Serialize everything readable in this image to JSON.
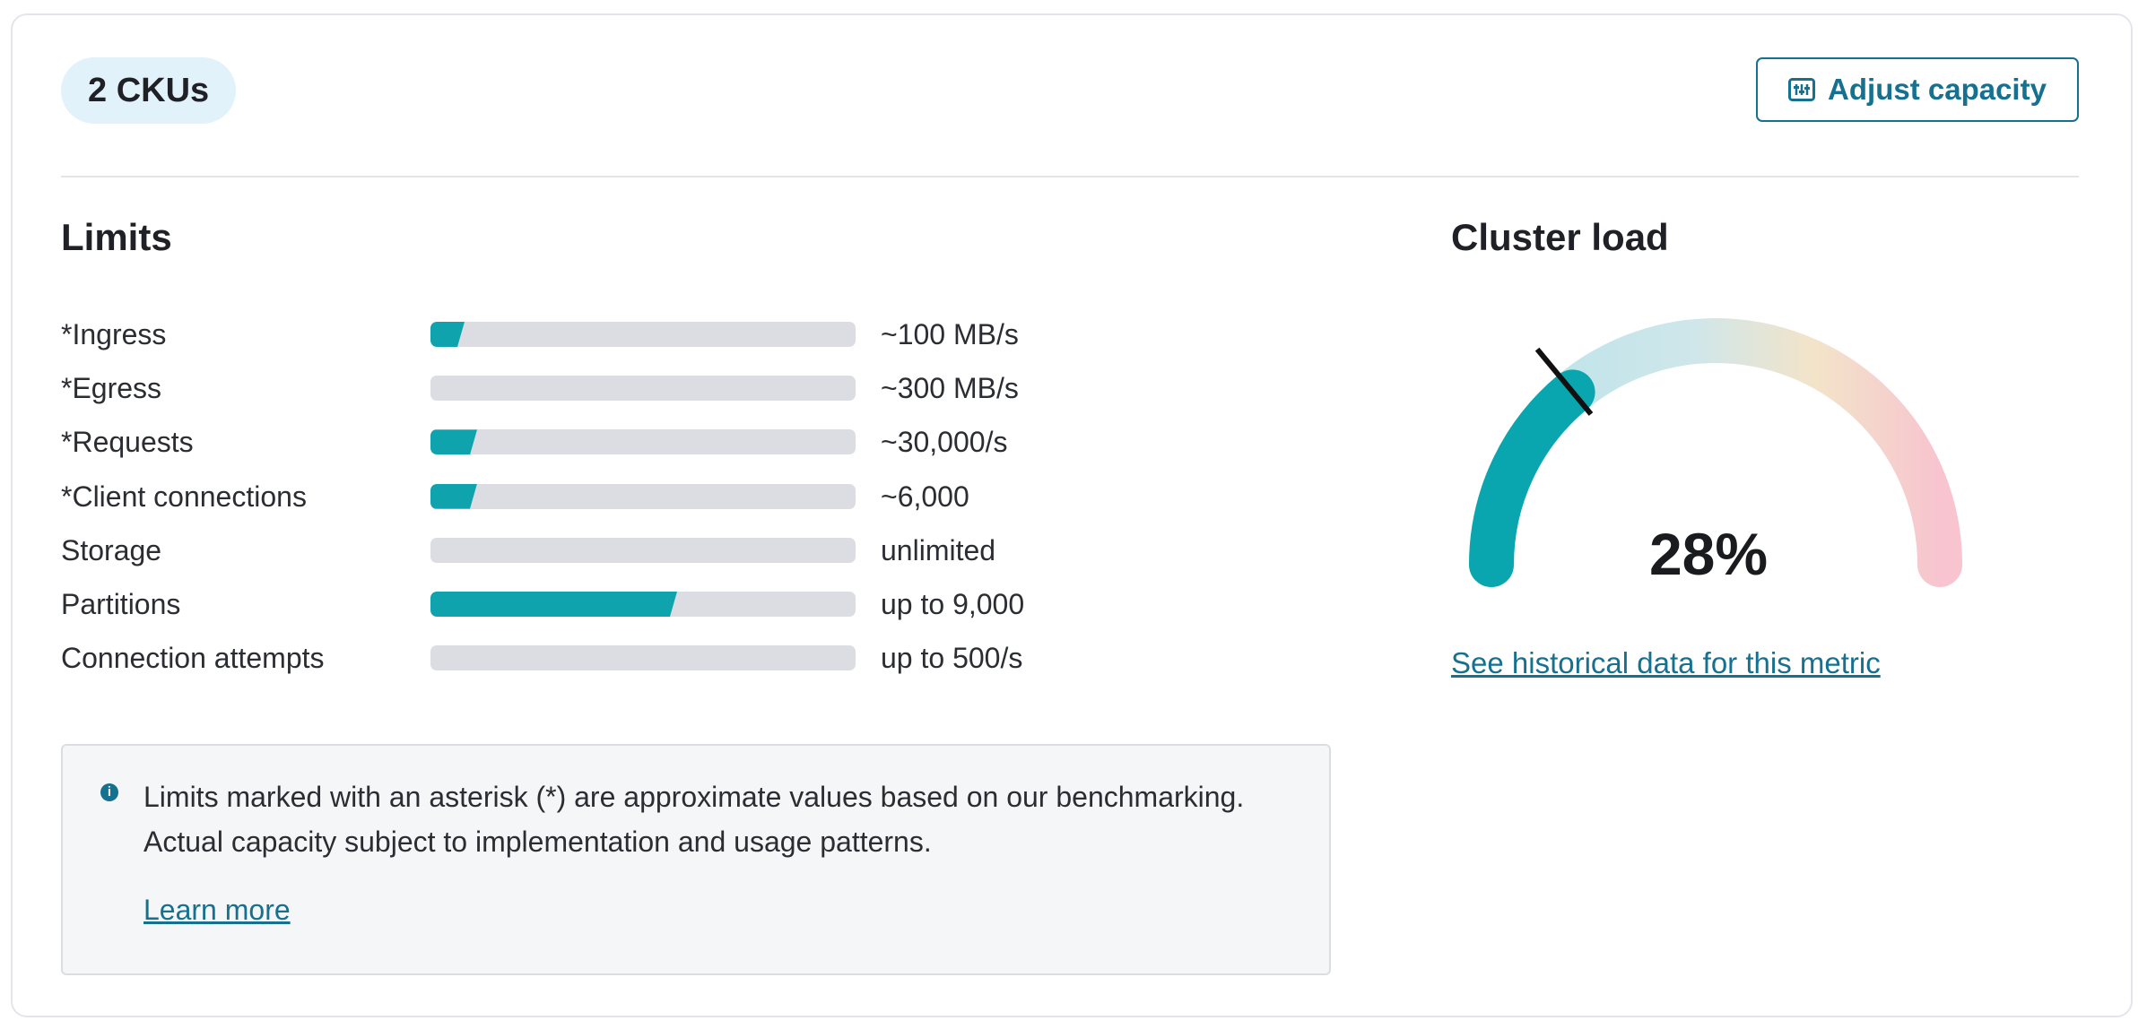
{
  "header": {
    "cku_badge": "2 CKUs",
    "adjust_capacity_label": "Adjust capacity",
    "adjust_capacity_icon": "sliders-icon"
  },
  "limits": {
    "title": "Limits",
    "rows": [
      {
        "label": "*Ingress",
        "value": "~100 MB/s",
        "usage_fraction": 0.08
      },
      {
        "label": "*Egress",
        "value": "~300 MB/s",
        "usage_fraction": 0.0
      },
      {
        "label": "*Requests",
        "value": "~30,000/s",
        "usage_fraction": 0.11
      },
      {
        "label": "*Client connections",
        "value": "~6,000",
        "usage_fraction": 0.11
      },
      {
        "label": "Storage",
        "value": "unlimited",
        "usage_fraction": 0.0
      },
      {
        "label": "Partitions",
        "value": "up to 9,000",
        "usage_fraction": 0.58
      },
      {
        "label": "Connection attempts",
        "value": "up to 500/s",
        "usage_fraction": 0.0
      }
    ],
    "info": {
      "icon": "info-icon",
      "text": "Limits marked with an asterisk (*) are approximate values based on our benchmarking. Actual capacity subject to implementation and usage patterns.",
      "learn_more": "Learn more"
    }
  },
  "cluster_load": {
    "title": "Cluster load",
    "value_text": "28%",
    "value_fraction": 0.28,
    "history_link": "See historical data for this metric"
  },
  "colors": {
    "accent": "#16708f",
    "fill": "#0fa3ad",
    "track": "#dcdde3",
    "badge_bg": "#e1f2fa"
  }
}
